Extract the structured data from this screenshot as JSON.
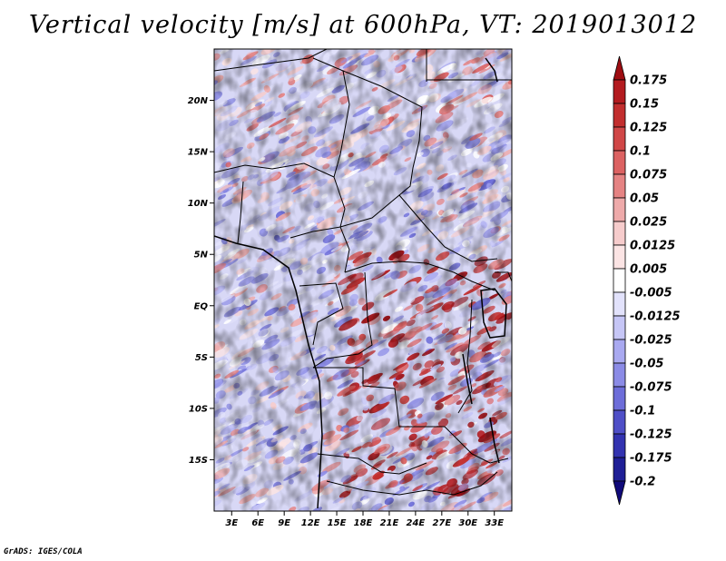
{
  "map": {
    "title": "Vertical velocity [m/s] at 600hPa, VT: 2019013012",
    "credit": "GrADS: IGES/COLA",
    "lat_labels": [
      "20N",
      "15N",
      "10N",
      "5N",
      "EQ",
      "5S",
      "10S",
      "15S"
    ],
    "lat_values": [
      20,
      15,
      10,
      5,
      0,
      -5,
      -10,
      -15
    ],
    "lon_labels": [
      "3E",
      "6E",
      "9E",
      "12E",
      "15E",
      "18E",
      "21E",
      "24E",
      "27E",
      "30E",
      "33E"
    ],
    "lon_values": [
      3,
      6,
      9,
      12,
      15,
      18,
      21,
      24,
      27,
      30,
      33
    ],
    "extent": {
      "lon_min": 1,
      "lon_max": 35,
      "lat_min": -20,
      "lat_max": 25
    }
  },
  "colorbar": {
    "labels": [
      "0.175",
      "0.15",
      "0.125",
      "0.1",
      "0.075",
      "0.05",
      "0.025",
      "0.0125",
      "0.005",
      "-0.005",
      "-0.0125",
      "-0.025",
      "-0.05",
      "-0.075",
      "-0.1",
      "-0.125",
      "-0.175",
      "-0.2"
    ],
    "colors": [
      "#9e0d12",
      "#b31b1f",
      "#c22e2e",
      "#d04747",
      "#dc6262",
      "#e58383",
      "#eeaaaa",
      "#f6cccc",
      "#fbe4e4",
      "#ffffff",
      "#e2e2fb",
      "#c6c6f6",
      "#a9a9f0",
      "#8b8be6",
      "#6d6dd9",
      "#4f4fc7",
      "#3333b0",
      "#1f1f96",
      "#100a7a"
    ]
  }
}
